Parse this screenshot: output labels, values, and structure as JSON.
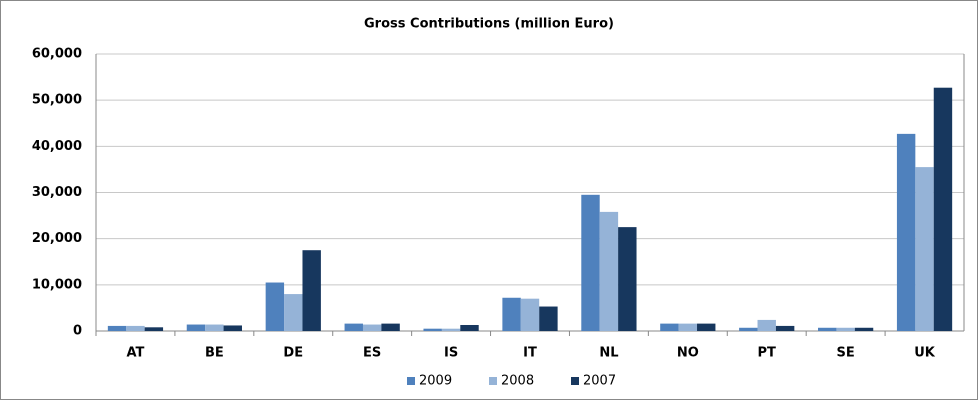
{
  "chart_data": {
    "type": "bar",
    "title": "Gross Contributions (million Euro)",
    "categories": [
      "AT",
      "BE",
      "DE",
      "ES",
      "IS",
      "IT",
      "NL",
      "NO",
      "PT",
      "SE",
      "UK"
    ],
    "series": [
      {
        "name": "2009",
        "color": "#4f81bd",
        "values": [
          1100,
          1400,
          10500,
          1600,
          500,
          7200,
          29500,
          1600,
          700,
          700,
          42700
        ]
      },
      {
        "name": "2008",
        "color": "#95b3d7",
        "values": [
          1100,
          1400,
          8000,
          1400,
          500,
          7000,
          25800,
          1600,
          2400,
          700,
          35500
        ]
      },
      {
        "name": "2007",
        "color": "#17375e",
        "values": [
          800,
          1200,
          17500,
          1600,
          1300,
          5300,
          22500,
          1600,
          1100,
          700,
          52700
        ]
      }
    ],
    "ylim": [
      0,
      60000
    ],
    "yticks": [
      0,
      {
        "value": 10000,
        "label": "10,000"
      },
      {
        "value": 20000,
        "label": "20,000"
      },
      {
        "value": 30000,
        "label": "30,000"
      },
      {
        "value": 40000,
        "label": "40,000"
      },
      {
        "value": 50000,
        "label": "50,000"
      },
      {
        "value": 60000,
        "label": "60,000"
      }
    ],
    "grid": true,
    "legend": "bottom"
  }
}
